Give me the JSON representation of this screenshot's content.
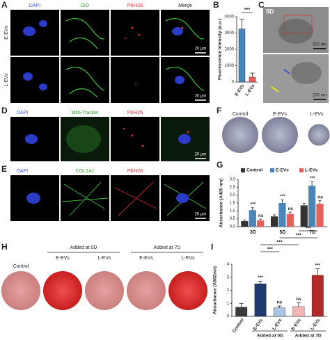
{
  "panels": {
    "A": {
      "label": "A",
      "columns": [
        "DAPI",
        "DiO",
        "PKH26",
        "Merge"
      ],
      "rows": [
        "E-EVs",
        "L-EVs"
      ],
      "scale_bars": [
        "20 μm",
        "20 μm"
      ]
    },
    "B": {
      "label": "B"
    },
    "C": {
      "label": "C",
      "day": "5D",
      "scale_bars": [
        "500 nm",
        "200 nm"
      ]
    },
    "D": {
      "label": "D",
      "columns": [
        "DAPI",
        "Mito-Tracker",
        "PKH26"
      ],
      "scale_bar": "20 μm"
    },
    "E": {
      "label": "E",
      "columns": [
        "DAPI",
        "COL1A1",
        "PKH26"
      ],
      "scale_bar": "20 μm"
    },
    "F": {
      "label": "F",
      "columns": [
        "Control",
        "E-EVs",
        "L-EVs"
      ]
    },
    "G": {
      "label": "G"
    },
    "H": {
      "label": "H",
      "control": "Control",
      "groups": [
        "Added at 0D",
        "Added at 7D"
      ],
      "columns": [
        "E-EVs",
        "L-EVs",
        "E-EVs",
        "L-EVs"
      ]
    },
    "I": {
      "label": "I"
    }
  },
  "chart_data": [
    {
      "type": "bar",
      "y_label": "Fluorescence Intensity (a.u.)",
      "categories": [
        "E-EVs",
        "L-EVs"
      ],
      "values": [
        3250,
        300
      ],
      "errors": [
        600,
        250
      ],
      "colors": [
        "#4a86b8",
        "#e8605a"
      ],
      "ylim": [
        0,
        4000
      ],
      "yticks": [
        0,
        1000,
        2000,
        3000,
        4000
      ],
      "significance": "***"
    },
    {
      "type": "bar",
      "y_label": "Absorbance (A405 nm)",
      "categories": [
        "3D",
        "5D",
        "7D"
      ],
      "series": [
        {
          "name": "Control",
          "color": "#333333",
          "values": [
            0.35,
            0.65,
            1.35
          ],
          "errors": [
            0.08,
            0.1,
            0.12
          ]
        },
        {
          "name": "E-EVs",
          "color": "#4a86b8",
          "values": [
            1.05,
            1.5,
            2.6
          ],
          "errors": [
            0.15,
            0.2,
            0.25
          ],
          "annotations": [
            "***",
            "***",
            "***"
          ]
        },
        {
          "name": "L-EVs",
          "color": "#e8605a",
          "values": [
            0.4,
            0.8,
            1.45
          ],
          "errors": [
            0.08,
            0.12,
            0.2
          ],
          "annotations": [
            "ns",
            "ns",
            "ns"
          ]
        }
      ],
      "ylim": [
        0,
        3
      ],
      "yticks": [
        {
          "value": 0,
          "label": "0.0"
        },
        0.5,
        {
          "value": 1,
          "label": "1.0"
        },
        1.5,
        {
          "value": 2,
          "label": "2.0"
        },
        2.5,
        {
          "value": 3,
          "label": "3.0"
        }
      ]
    },
    {
      "type": "bar",
      "y_label": "Absorbance (A562nm)",
      "categories": [
        "Control",
        "E-EVs",
        "L-EVs",
        "E-EVs",
        "L-EVs"
      ],
      "values": [
        0.7,
        2.5,
        0.65,
        0.75,
        3.15
      ],
      "errors": [
        0.3,
        0.2,
        0.15,
        0.3,
        0.5
      ],
      "colors": [
        "#3a3a3a",
        "#1f3a6b",
        "#a9c4e4",
        "#f2b6b6",
        "#b22a2a"
      ],
      "annotations": [
        null,
        "***",
        "ns",
        "ns",
        "***"
      ],
      "comparisons": [
        "***",
        "***",
        "***",
        "***"
      ],
      "groups": [
        "Added at 0D",
        "Added at 7D"
      ],
      "ylim": [
        0,
        4
      ],
      "yticks": [
        0,
        1,
        2,
        3,
        4
      ]
    }
  ]
}
